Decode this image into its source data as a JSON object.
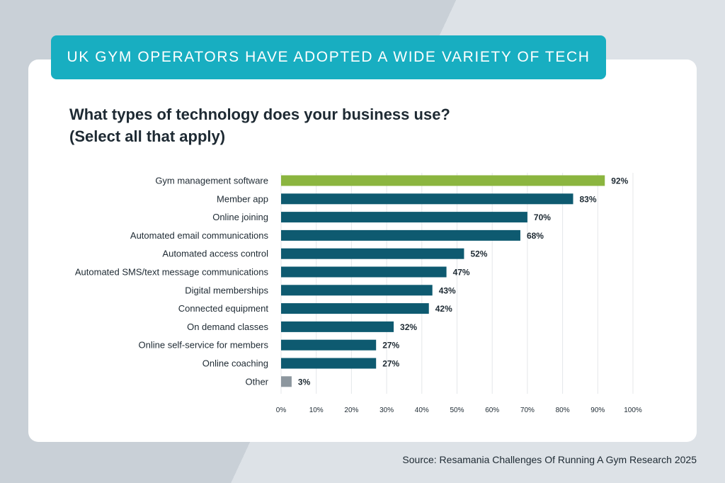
{
  "banner": {
    "text": "UK GYM OPERATORS HAVE ADOPTED A WIDE VARIETY OF TECH"
  },
  "question": {
    "line1": "What types of technology does your business use?",
    "line2": "(Select all that apply)"
  },
  "source": {
    "text": "Source: Resamania Challenges Of Running A Gym Research 2025"
  },
  "colors": {
    "highlight": "#8bb53f",
    "primary": "#0e5a70",
    "other": "#8c969e",
    "banner": "#18aec1"
  },
  "chart_data": {
    "type": "bar",
    "orientation": "horizontal",
    "title": "What types of technology does your business use? (Select all that apply)",
    "categories": [
      "Gym management software",
      "Member app",
      "Online joining",
      "Automated email communications",
      "Automated access control",
      "Automated SMS/text message communications",
      "Digital memberships",
      "Connected equipment",
      "On demand classes",
      "Online self-service for members",
      "Online coaching",
      "Other"
    ],
    "values": [
      92,
      83,
      70,
      68,
      52,
      47,
      43,
      42,
      32,
      27,
      27,
      3
    ],
    "value_labels": [
      "92%",
      "83%",
      "70%",
      "68%",
      "52%",
      "47%",
      "43%",
      "42%",
      "32%",
      "27%",
      "27%",
      "3%"
    ],
    "bar_colors": [
      "#8bb53f",
      "#0e5a70",
      "#0e5a70",
      "#0e5a70",
      "#0e5a70",
      "#0e5a70",
      "#0e5a70",
      "#0e5a70",
      "#0e5a70",
      "#0e5a70",
      "#0e5a70",
      "#8c969e"
    ],
    "xlim": [
      0,
      100
    ],
    "xticks": [
      "0%",
      "10%",
      "20%",
      "30%",
      "40%",
      "50%",
      "60%",
      "70%",
      "80%",
      "90%",
      "100%"
    ],
    "grid": true
  }
}
